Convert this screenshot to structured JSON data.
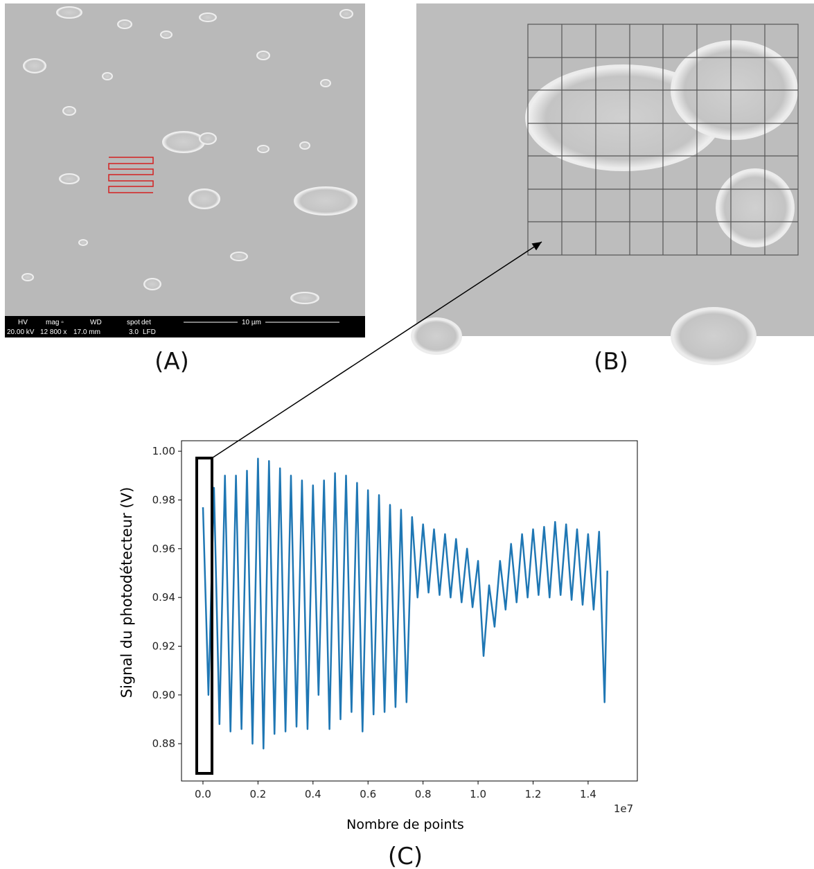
{
  "panel_a": {
    "label": "(A)",
    "info": [
      [
        "HV",
        "20.00 kV"
      ],
      [
        "mag ▫",
        "12 800 x"
      ],
      [
        "WD",
        "17.0 mm"
      ],
      [
        "spot",
        "3.0"
      ],
      [
        "det",
        "LFD"
      ]
    ],
    "scale_bar": "10 µm"
  },
  "panel_b": {
    "label": "(B)"
  },
  "chart_data": {
    "type": "line",
    "panel_label": "(C)",
    "x_label": "Nombre de points",
    "y_label": "Signal du photodétecteur (V)",
    "x_offset_label": "1e7",
    "xlim": [
      -0.078,
      1.579
    ],
    "ylim": [
      0.8647,
      1.0043
    ],
    "xticks": [
      {
        "value": 0,
        "label": "0.0"
      },
      0.2,
      0.4,
      0.6,
      0.8,
      {
        "value": 1,
        "label": "1.0"
      },
      1.2,
      1.4
    ],
    "yticks": [
      0.88,
      {
        "value": 0.9,
        "label": "0.90"
      },
      0.92,
      0.94,
      0.96,
      0.98,
      {
        "value": 1,
        "label": "1.00"
      }
    ],
    "series": [
      {
        "color": "#1f77b4",
        "x": [
          0,
          0.02,
          0.04,
          0.06,
          0.08,
          0.1,
          0.12,
          0.14,
          0.16,
          0.18,
          0.2,
          0.22,
          0.24,
          0.26,
          0.28,
          0.3,
          0.32,
          0.34,
          0.36,
          0.38,
          0.4,
          0.42,
          0.44,
          0.46,
          0.48,
          0.5,
          0.52,
          0.54,
          0.56,
          0.58,
          0.6,
          0.62,
          0.64,
          0.66,
          0.68,
          0.7,
          0.72,
          0.74,
          0.76,
          0.78,
          0.8,
          0.82,
          0.84,
          0.86,
          0.88,
          0.9,
          0.92,
          0.94,
          0.96,
          0.98,
          1,
          1.02,
          1.04,
          1.06,
          1.08,
          1.1,
          1.12,
          1.14,
          1.16,
          1.18,
          1.2,
          1.22,
          1.24,
          1.26,
          1.28,
          1.3,
          1.32,
          1.34,
          1.36,
          1.38,
          1.4,
          1.42,
          1.44,
          1.46,
          1.47
        ],
        "values": [
          0.977,
          0.9,
          0.985,
          0.888,
          0.99,
          0.885,
          0.99,
          0.886,
          0.992,
          0.88,
          0.997,
          0.878,
          0.996,
          0.884,
          0.993,
          0.885,
          0.99,
          0.887,
          0.988,
          0.886,
          0.986,
          0.9,
          0.988,
          0.886,
          0.991,
          0.89,
          0.99,
          0.893,
          0.987,
          0.885,
          0.984,
          0.892,
          0.982,
          0.893,
          0.978,
          0.895,
          0.976,
          0.897,
          0.973,
          0.94,
          0.97,
          0.942,
          0.968,
          0.941,
          0.966,
          0.94,
          0.964,
          0.938,
          0.96,
          0.936,
          0.955,
          0.916,
          0.945,
          0.928,
          0.955,
          0.935,
          0.962,
          0.938,
          0.966,
          0.94,
          0.968,
          0.941,
          0.969,
          0.94,
          0.971,
          0.941,
          0.97,
          0.939,
          0.968,
          0.937,
          0.966,
          0.935,
          0.967,
          0.897,
          0.951
        ]
      }
    ]
  }
}
